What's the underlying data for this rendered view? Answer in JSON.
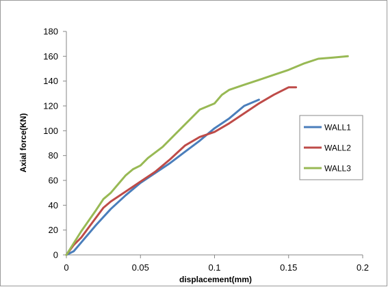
{
  "chart_data": {
    "type": "line",
    "title": "",
    "xlabel": "displacement(mm)",
    "ylabel": "Axial force(KN)",
    "xlim": [
      0,
      0.2
    ],
    "ylim": [
      0,
      180
    ],
    "x_ticks": [
      "0",
      "0.05",
      "0.1",
      "0.15",
      "0.2"
    ],
    "y_ticks": [
      "0",
      "20",
      "40",
      "60",
      "80",
      "100",
      "120",
      "140",
      "160",
      "180"
    ],
    "grid": false,
    "legend_position": "right",
    "series": [
      {
        "name": "WALL1",
        "color": "#4a7ebb",
        "points": [
          [
            0,
            0
          ],
          [
            0.005,
            3
          ],
          [
            0.01,
            10
          ],
          [
            0.02,
            24
          ],
          [
            0.03,
            37
          ],
          [
            0.04,
            48
          ],
          [
            0.05,
            58
          ],
          [
            0.06,
            66
          ],
          [
            0.07,
            74
          ],
          [
            0.08,
            83
          ],
          [
            0.09,
            92
          ],
          [
            0.1,
            102
          ],
          [
            0.11,
            110
          ],
          [
            0.12,
            120
          ],
          [
            0.13,
            125
          ]
        ]
      },
      {
        "name": "WALL2",
        "color": "#be4b48",
        "points": [
          [
            0,
            0
          ],
          [
            0.005,
            8
          ],
          [
            0.01,
            14
          ],
          [
            0.02,
            30
          ],
          [
            0.025,
            38
          ],
          [
            0.03,
            43
          ],
          [
            0.04,
            51
          ],
          [
            0.05,
            59
          ],
          [
            0.06,
            67
          ],
          [
            0.07,
            77
          ],
          [
            0.08,
            88
          ],
          [
            0.09,
            95
          ],
          [
            0.1,
            99
          ],
          [
            0.11,
            106
          ],
          [
            0.12,
            114
          ],
          [
            0.13,
            122
          ],
          [
            0.14,
            129
          ],
          [
            0.15,
            135
          ],
          [
            0.155,
            135
          ]
        ]
      },
      {
        "name": "WALL3",
        "color": "#98b954",
        "points": [
          [
            0,
            0
          ],
          [
            0.01,
            19
          ],
          [
            0.02,
            36
          ],
          [
            0.025,
            45
          ],
          [
            0.03,
            50
          ],
          [
            0.035,
            57
          ],
          [
            0.04,
            64
          ],
          [
            0.045,
            69
          ],
          [
            0.05,
            72
          ],
          [
            0.055,
            78
          ],
          [
            0.065,
            87
          ],
          [
            0.075,
            99
          ],
          [
            0.09,
            117
          ],
          [
            0.1,
            122
          ],
          [
            0.105,
            129
          ],
          [
            0.11,
            133
          ],
          [
            0.12,
            137
          ],
          [
            0.13,
            141
          ],
          [
            0.14,
            145
          ],
          [
            0.15,
            149
          ],
          [
            0.16,
            154
          ],
          [
            0.17,
            158
          ],
          [
            0.18,
            159
          ],
          [
            0.19,
            160
          ]
        ]
      }
    ]
  }
}
